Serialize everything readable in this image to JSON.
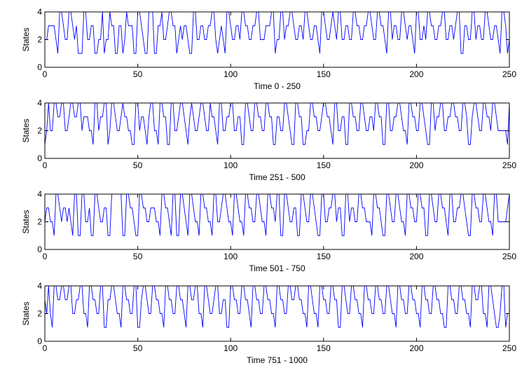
{
  "chart_data": [
    {
      "type": "line",
      "title": "",
      "xlabel": "Time 0 - 250",
      "ylabel": "States",
      "xlim": [
        0,
        250
      ],
      "ylim": [
        0,
        4
      ],
      "xticks": [
        0,
        50,
        100,
        150,
        200,
        250
      ],
      "yticks": [
        0,
        2,
        4
      ],
      "grid": false,
      "color": "#0000ff",
      "series": [
        {
          "x_start": 0,
          "values": [
            2,
            2,
            3,
            3,
            3,
            3,
            2,
            1,
            4,
            4,
            3,
            2,
            2,
            4,
            4,
            3,
            2,
            3,
            1,
            1,
            1,
            4,
            4,
            2,
            2,
            3,
            3,
            1,
            1,
            2,
            2,
            4,
            1,
            2,
            2,
            4,
            3,
            3,
            1,
            1,
            3,
            3,
            1,
            2,
            4,
            3,
            3,
            3,
            1,
            1,
            4,
            4,
            3,
            2,
            1,
            1,
            4,
            4,
            4,
            1,
            1,
            3,
            3,
            4,
            2,
            2,
            3,
            4,
            4,
            3,
            3,
            1,
            2,
            3,
            2,
            3,
            3,
            2,
            1,
            1,
            4,
            4,
            2,
            2,
            3,
            3,
            2,
            2,
            3,
            3,
            4,
            4,
            2,
            1,
            2,
            3,
            2,
            1,
            4,
            4,
            3,
            2,
            2,
            3,
            3,
            2,
            4,
            4,
            3,
            3,
            2,
            2,
            3,
            3,
            4,
            4,
            2,
            2,
            2,
            3,
            3,
            3,
            4,
            4,
            1,
            2,
            2,
            4,
            4,
            2,
            3,
            3,
            4,
            4,
            3,
            2,
            2,
            3,
            3,
            2,
            4,
            4,
            3,
            2,
            2,
            3,
            3,
            2,
            1,
            4,
            4,
            3,
            2,
            2,
            3,
            4,
            3,
            2,
            4,
            4,
            2,
            2,
            3,
            3,
            2,
            2,
            4,
            4,
            3,
            3,
            2,
            2,
            3,
            3,
            4,
            4,
            3,
            2,
            2,
            4,
            4,
            3,
            3,
            2,
            1,
            4,
            4,
            2,
            3,
            3,
            2,
            2,
            4,
            4,
            3,
            2,
            3,
            3,
            2,
            1,
            4,
            4,
            2,
            2,
            3,
            2,
            4,
            4,
            3,
            3,
            2,
            2,
            3,
            3,
            4,
            4,
            2,
            2,
            3,
            3,
            2,
            3,
            4,
            4,
            1,
            1,
            3,
            3,
            2,
            2,
            4,
            4,
            2,
            3,
            3,
            2,
            2,
            4,
            4,
            3,
            2,
            2,
            3,
            3,
            2,
            1,
            4,
            4,
            3,
            1,
            2
          ]
        }
      ]
    },
    {
      "type": "line",
      "title": "",
      "xlabel": "Time 251 - 500",
      "ylabel": "States",
      "xlim": [
        0,
        250
      ],
      "ylim": [
        0,
        4
      ],
      "xticks": [
        0,
        50,
        100,
        150,
        200,
        250
      ],
      "yticks": [
        0,
        2,
        4
      ],
      "grid": false,
      "color": "#0000ff",
      "series": [
        {
          "x_start": 0,
          "values": [
            1,
            2,
            4,
            2,
            2,
            4,
            4,
            3,
            3,
            4,
            4,
            2,
            2,
            3,
            4,
            4,
            3,
            3,
            4,
            4,
            2,
            3,
            3,
            3,
            2,
            2,
            1,
            4,
            4,
            2,
            3,
            3,
            4,
            4,
            1,
            2,
            4,
            4,
            3,
            2,
            2,
            3,
            4,
            3,
            3,
            2,
            2,
            1,
            1,
            4,
            4,
            2,
            3,
            3,
            2,
            1,
            3,
            4,
            4,
            2,
            2,
            1,
            4,
            4,
            3,
            3,
            1,
            1,
            4,
            4,
            2,
            2,
            3,
            4,
            4,
            3,
            2,
            1,
            3,
            4,
            3,
            2,
            2,
            3,
            4,
            4,
            3,
            2,
            2,
            4,
            3,
            3,
            2,
            1,
            4,
            4,
            2,
            2,
            3,
            3,
            4,
            4,
            2,
            2,
            3,
            3,
            1,
            1,
            4,
            4,
            3,
            2,
            2,
            4,
            4,
            3,
            3,
            2,
            2,
            4,
            4,
            3,
            3,
            1,
            1,
            3,
            3,
            2,
            2,
            4,
            4,
            3,
            2,
            1,
            1,
            4,
            4,
            3,
            3,
            1,
            1,
            2,
            2,
            4,
            4,
            3,
            3,
            2,
            2,
            3,
            4,
            4,
            3,
            3,
            2,
            1,
            4,
            4,
            2,
            2,
            3,
            3,
            1,
            1,
            4,
            4,
            3,
            3,
            2,
            2,
            4,
            4,
            3,
            2,
            2,
            3,
            3,
            2,
            4,
            4,
            3,
            3,
            1,
            1,
            4,
            4,
            2,
            2,
            3,
            3,
            4,
            4,
            3,
            2,
            2,
            1,
            4,
            4,
            3,
            3,
            2,
            2,
            4,
            4,
            3,
            2,
            1,
            1,
            4,
            4,
            2,
            3,
            3,
            4,
            4,
            2,
            2,
            3,
            3,
            4,
            4,
            3,
            3,
            2,
            2,
            4,
            4,
            3,
            1,
            1,
            3,
            4,
            4,
            3,
            2,
            2,
            4,
            4,
            3,
            3,
            2,
            4,
            4,
            3,
            2,
            2,
            2,
            2,
            2,
            1,
            4
          ]
        }
      ]
    },
    {
      "type": "line",
      "title": "",
      "xlabel": "Time 501 - 750",
      "ylabel": "States",
      "xlim": [
        0,
        250
      ],
      "ylim": [
        0,
        4
      ],
      "xticks": [
        0,
        50,
        100,
        150,
        200,
        250
      ],
      "yticks": [
        0,
        2,
        4
      ],
      "grid": false,
      "color": "#0000ff",
      "series": [
        {
          "x_start": 0,
          "values": [
            2,
            3,
            3,
            2,
            2,
            1,
            4,
            4,
            3,
            2,
            3,
            3,
            2,
            3,
            2,
            1,
            4,
            4,
            1,
            1,
            4,
            4,
            2,
            2,
            3,
            1,
            1,
            4,
            4,
            3,
            2,
            2,
            3,
            3,
            1,
            1,
            4,
            4,
            4,
            4,
            4,
            4,
            1,
            1,
            4,
            4,
            3,
            3,
            2,
            1,
            1,
            4,
            4,
            3,
            3,
            2,
            2,
            3,
            3,
            3,
            2,
            2,
            1,
            4,
            4,
            3,
            3,
            2,
            1,
            4,
            4,
            1,
            1,
            4,
            4,
            3,
            2,
            1,
            4,
            4,
            3,
            2,
            2,
            1,
            4,
            4,
            3,
            3,
            2,
            2,
            1,
            4,
            4,
            2,
            2,
            3,
            4,
            4,
            3,
            2,
            2,
            1,
            4,
            4,
            3,
            2,
            2,
            1,
            4,
            4,
            3,
            3,
            2,
            2,
            4,
            4,
            3,
            2,
            2,
            1,
            4,
            4,
            3,
            3,
            2,
            4,
            4,
            1,
            1,
            4,
            4,
            3,
            2,
            2,
            3,
            3,
            1,
            1,
            4,
            4,
            3,
            2,
            2,
            4,
            4,
            3,
            2,
            1,
            1,
            4,
            4,
            2,
            2,
            3,
            3,
            4,
            4,
            2,
            3,
            3,
            1,
            1,
            4,
            4,
            2,
            3,
            3,
            2,
            2,
            4,
            4,
            3,
            3,
            2,
            2,
            2,
            1,
            4,
            4,
            3,
            3,
            2,
            1,
            1,
            4,
            4,
            3,
            2,
            2,
            4,
            4,
            3,
            2,
            2,
            1,
            4,
            4,
            3,
            3,
            2,
            2,
            4,
            4,
            3,
            3,
            1,
            1,
            4,
            4,
            3,
            2,
            2,
            4,
            4,
            3,
            3,
            2,
            1,
            4,
            4,
            2,
            2,
            3,
            3,
            4,
            4,
            3,
            2,
            1,
            1,
            4,
            4,
            3,
            3,
            2,
            2,
            4,
            4,
            3,
            2,
            2,
            1,
            4,
            4,
            2,
            2,
            2,
            2,
            2,
            3,
            4
          ]
        }
      ]
    },
    {
      "type": "line",
      "title": "",
      "xlabel": "Time 751 - 1000",
      "ylabel": "States",
      "xlim": [
        0,
        250
      ],
      "ylim": [
        0,
        4
      ],
      "xticks": [
        0,
        50,
        100,
        150,
        200,
        250
      ],
      "yticks": [
        0,
        2,
        4
      ],
      "grid": false,
      "color": "#0000ff",
      "series": [
        {
          "x_start": 0,
          "values": [
            3,
            2,
            4,
            2,
            1,
            4,
            4,
            3,
            3,
            4,
            4,
            3,
            3,
            4,
            4,
            2,
            2,
            3,
            3,
            4,
            4,
            2,
            2,
            1,
            4,
            4,
            3,
            3,
            2,
            2,
            4,
            4,
            1,
            1,
            3,
            3,
            4,
            4,
            3,
            2,
            2,
            1,
            4,
            4,
            3,
            3,
            2,
            2,
            4,
            4,
            1,
            1,
            3,
            4,
            4,
            3,
            2,
            2,
            4,
            4,
            3,
            3,
            2,
            2,
            1,
            4,
            4,
            3,
            3,
            2,
            2,
            4,
            4,
            3,
            3,
            2,
            1,
            4,
            4,
            3,
            3,
            4,
            4,
            2,
            2,
            1,
            4,
            4,
            3,
            2,
            2,
            3,
            4,
            4,
            2,
            2,
            3,
            3,
            1,
            1,
            4,
            4,
            3,
            3,
            2,
            2,
            4,
            4,
            3,
            3,
            2,
            1,
            4,
            4,
            3,
            3,
            2,
            2,
            4,
            4,
            3,
            3,
            2,
            2,
            1,
            4,
            4,
            3,
            3,
            2,
            2,
            4,
            4,
            3,
            3,
            4,
            4,
            3,
            3,
            2,
            2,
            1,
            4,
            4,
            3,
            2,
            2,
            1,
            4,
            4,
            3,
            3,
            2,
            2,
            4,
            4,
            3,
            3,
            1,
            1,
            4,
            4,
            3,
            2,
            2,
            4,
            4,
            3,
            3,
            2,
            2,
            1,
            4,
            4,
            3,
            3,
            2,
            2,
            4,
            4,
            3,
            3,
            2,
            2,
            4,
            4,
            3,
            2,
            2,
            1,
            4,
            4,
            3,
            3,
            2,
            2,
            4,
            4,
            3,
            3,
            2,
            2,
            1,
            4,
            4,
            3,
            3,
            2,
            2,
            4,
            4,
            3,
            3,
            2,
            2,
            1,
            1,
            4,
            4,
            3,
            3,
            2,
            2,
            4,
            4,
            3,
            3,
            2,
            2,
            1,
            4,
            4,
            3,
            3,
            4,
            4,
            2,
            2,
            1,
            4,
            4,
            3,
            2,
            1,
            1,
            2,
            4,
            4,
            1,
            2,
            2
          ]
        }
      ]
    }
  ]
}
